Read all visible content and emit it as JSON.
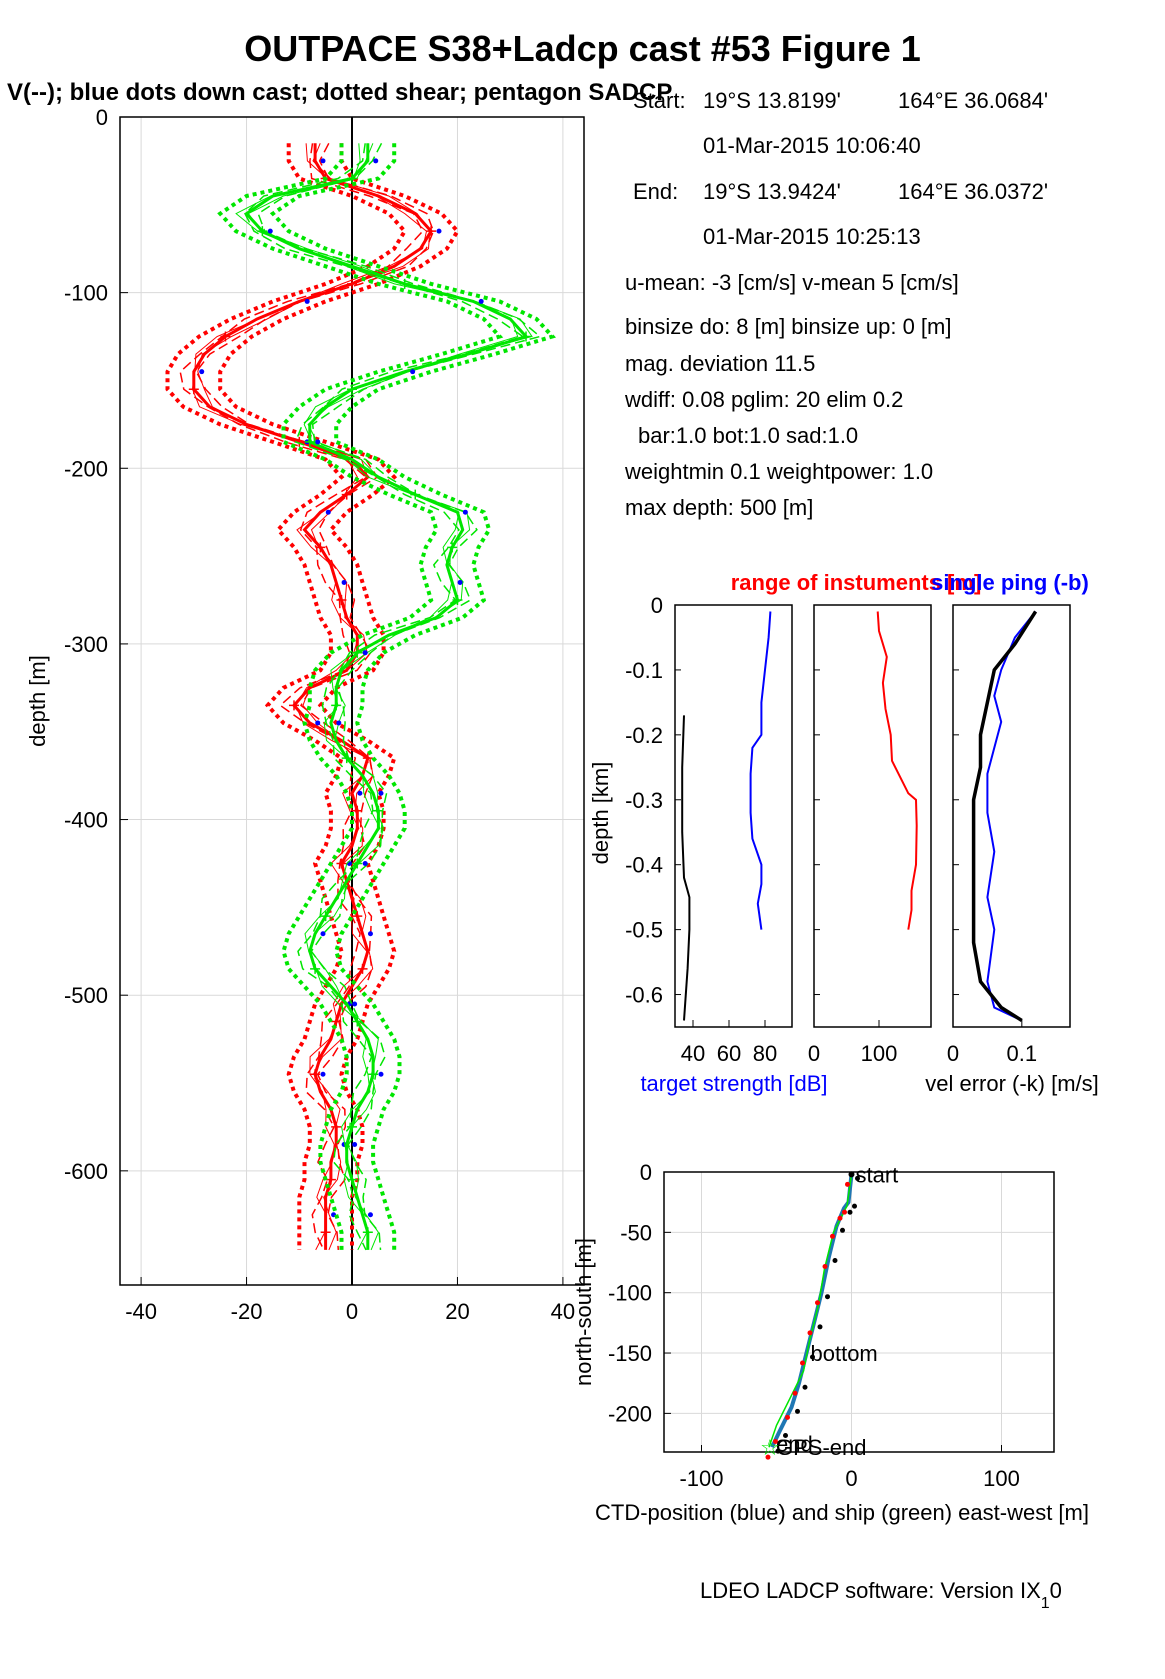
{
  "figure": {
    "title": "OUTPACE S38+Ladcp cast #53  Figure 1",
    "subtitle": "V(--); blue dots down cast; dotted shear; pentagon SADCP",
    "footer_main": "LDEO LADCP software: Version IX",
    "footer_sub": "1",
    "footer_tail": "0"
  },
  "info": {
    "start_label": "Start:",
    "start_lat": "19°S 13.8199'",
    "start_lon": "164°E 36.0684'",
    "start_time": "01-Mar-2015 10:06:40",
    "end_label": "End:",
    "end_lat": "19°S 13.9424'",
    "end_lon": "164°E 36.0372'",
    "end_time": "01-Mar-2015 10:25:13",
    "line_umean": "u-mean:  -3 [cm/s]    v-mean   5 [cm/s]",
    "line_binsize": "binsize do: 8 [m]  binsize up:  0 [m]",
    "line_magdev": "mag. deviation 11.5",
    "line_wdiff": "wdiff: 0.08  pglim: 20  elim 0.2",
    "line_bar": "bar:1.0 bot:1.0 sad:1.0",
    "line_weight": "weightmin 0.1  weightpower: 1.0",
    "line_maxdepth": "max depth: 500 [m]"
  },
  "colors": {
    "u": "#ff0000",
    "v": "#00e600",
    "dots": "#0000ff",
    "target": "#0000ff",
    "ctd": "#1f77b4",
    "ship": "#00e600",
    "black": "#000000"
  },
  "chart_data": [
    {
      "type": "line",
      "ylabel": "depth [m]",
      "xlabel": "",
      "xlim": [
        -44,
        44
      ],
      "ylim": [
        -665,
        0
      ],
      "xticks": [
        -40,
        -20,
        0,
        20,
        40
      ],
      "yticks": [
        0,
        -100,
        -200,
        -300,
        -400,
        -500,
        -600
      ],
      "grid": true,
      "depth": [
        -15,
        -25,
        -35,
        -45,
        -55,
        -65,
        -75,
        -85,
        -95,
        -105,
        -115,
        -125,
        -135,
        -145,
        -155,
        -165,
        -175,
        -185,
        -195,
        -205,
        -215,
        -225,
        -235,
        -245,
        -255,
        -265,
        -275,
        -285,
        -295,
        -305,
        -315,
        -325,
        -335,
        -345,
        -355,
        -365,
        -375,
        -385,
        -395,
        -405,
        -415,
        -425,
        -435,
        -445,
        -455,
        -465,
        -475,
        -485,
        -495,
        -505,
        -515,
        -525,
        -535,
        -545,
        -555,
        -565,
        -575,
        -585,
        -595,
        -605,
        -615,
        -625,
        -635,
        -645
      ],
      "series": [
        {
          "name": "u",
          "color": "#ff0000",
          "values": [
            -7,
            -7,
            -5,
            5,
            12,
            15,
            13,
            8,
            0,
            -10,
            -18,
            -24,
            -28,
            -30,
            -30,
            -27,
            -20,
            -10,
            0,
            3,
            -1,
            -6,
            -9,
            -6,
            -4,
            -3,
            -2,
            -1,
            1,
            1,
            -1,
            -8,
            -11,
            -8,
            -2,
            3,
            2,
            0,
            1,
            1,
            0,
            -2,
            -1,
            0,
            1,
            2,
            3,
            2,
            0,
            -2,
            -3,
            -4,
            -6,
            -7,
            -6,
            -4,
            -3,
            -3,
            -4,
            -4,
            -5,
            -5,
            -5,
            -5
          ]
        },
        {
          "name": "v",
          "color": "#00e600",
          "values": [
            3,
            3,
            0,
            -15,
            -20,
            -17,
            -10,
            0,
            10,
            23,
            30,
            33,
            22,
            10,
            0,
            -5,
            -8,
            -8,
            0,
            5,
            12,
            20,
            21,
            19,
            18,
            19,
            20,
            16,
            7,
            1,
            -2,
            -3,
            -3,
            -4,
            -3,
            -1,
            2,
            4,
            5,
            5,
            3,
            1,
            -1,
            -3,
            -5,
            -7,
            -8,
            -7,
            -4,
            -1,
            1,
            3,
            4,
            4,
            3,
            1,
            0,
            -1,
            -1,
            0,
            1,
            2,
            3,
            3
          ]
        }
      ]
    },
    {
      "type": "line",
      "title": "",
      "ylabel": "depth [km]",
      "xlabel": "target strength [dB]",
      "xlim": [
        30,
        95
      ],
      "xticks": [
        40,
        60,
        80
      ],
      "ylim": [
        -0.65,
        0
      ],
      "yticks": [
        0,
        -0.1,
        -0.2,
        -0.3,
        -0.4,
        -0.5,
        -0.6
      ],
      "series": [
        {
          "name": "target strength",
          "color": "#0000ff",
          "points": [
            [
              83,
              -0.01
            ],
            [
              82,
              -0.05
            ],
            [
              80,
              -0.1
            ],
            [
              78,
              -0.15
            ],
            [
              78,
              -0.2
            ],
            [
              73,
              -0.22
            ],
            [
              72,
              -0.26
            ],
            [
              72,
              -0.32
            ],
            [
              73,
              -0.36
            ],
            [
              78,
              -0.4
            ],
            [
              78,
              -0.43
            ],
            [
              76,
              -0.46
            ],
            [
              78,
              -0.5
            ]
          ]
        },
        {
          "name": "range",
          "color": "#000000",
          "points": [
            [
              35,
              -0.17
            ],
            [
              34,
              -0.25
            ],
            [
              34,
              -0.35
            ],
            [
              35,
              -0.42
            ],
            [
              38,
              -0.45
            ],
            [
              38,
              -0.5
            ],
            [
              37,
              -0.56
            ],
            [
              36,
              -0.6
            ],
            [
              35,
              -0.64
            ]
          ]
        }
      ]
    },
    {
      "type": "line",
      "title": "range of instuments [m]",
      "xlim": [
        0,
        180
      ],
      "xticks": [
        0,
        100
      ],
      "ylim": [
        -0.65,
        0
      ],
      "series": [
        {
          "name": "range",
          "color": "#ff0000",
          "points": [
            [
              98,
              -0.01
            ],
            [
              100,
              -0.04
            ],
            [
              112,
              -0.08
            ],
            [
              106,
              -0.12
            ],
            [
              110,
              -0.16
            ],
            [
              118,
              -0.2
            ],
            [
              120,
              -0.24
            ],
            [
              145,
              -0.29
            ],
            [
              157,
              -0.3
            ],
            [
              158,
              -0.34
            ],
            [
              157,
              -0.4
            ],
            [
              150,
              -0.44
            ],
            [
              150,
              -0.47
            ],
            [
              145,
              -0.5
            ]
          ]
        }
      ]
    },
    {
      "type": "line",
      "title": "single ping (-b)",
      "xlabel": "vel error (-k) [m/s]",
      "xlim": [
        0,
        0.17
      ],
      "xticks": [
        0,
        0.1
      ],
      "ylim": [
        -0.65,
        0
      ],
      "series": [
        {
          "name": "single ping",
          "color": "#0000ff",
          "points": [
            [
              0.12,
              -0.01
            ],
            [
              0.09,
              -0.05
            ],
            [
              0.07,
              -0.1
            ],
            [
              0.06,
              -0.14
            ],
            [
              0.07,
              -0.18
            ],
            [
              0.06,
              -0.22
            ],
            [
              0.05,
              -0.26
            ],
            [
              0.05,
              -0.32
            ],
            [
              0.06,
              -0.38
            ],
            [
              0.05,
              -0.45
            ],
            [
              0.06,
              -0.5
            ],
            [
              0.05,
              -0.58
            ],
            [
              0.06,
              -0.62
            ],
            [
              0.1,
              -0.64
            ]
          ]
        },
        {
          "name": "vel error",
          "color": "#000000",
          "points": [
            [
              0.12,
              -0.01
            ],
            [
              0.09,
              -0.06
            ],
            [
              0.06,
              -0.1
            ],
            [
              0.05,
              -0.15
            ],
            [
              0.04,
              -0.2
            ],
            [
              0.04,
              -0.25
            ],
            [
              0.03,
              -0.3
            ],
            [
              0.03,
              -0.38
            ],
            [
              0.03,
              -0.45
            ],
            [
              0.03,
              -0.52
            ],
            [
              0.04,
              -0.58
            ],
            [
              0.07,
              -0.62
            ],
            [
              0.1,
              -0.64
            ]
          ]
        }
      ]
    },
    {
      "type": "line",
      "xlabel": "CTD-position (blue) and ship (green) east-west [m]",
      "ylabel": "north-south [m]",
      "xlim": [
        -125,
        135
      ],
      "xticks": [
        -100,
        0,
        100
      ],
      "ylim": [
        -232,
        0
      ],
      "yticks": [
        0,
        -50,
        -100,
        -150,
        -200
      ],
      "grid": true,
      "annotations": [
        "start",
        "bottom",
        "GPS-end",
        "end"
      ],
      "series": [
        {
          "name": "CTD",
          "color": "#1f77b4",
          "points": [
            [
              0,
              -2
            ],
            [
              -2,
              -25
            ],
            [
              -5,
              -30
            ],
            [
              -10,
              -45
            ],
            [
              -15,
              -70
            ],
            [
              -20,
              -100
            ],
            [
              -25,
              -125
            ],
            [
              -30,
              -150
            ],
            [
              -35,
              -175
            ],
            [
              -40,
              -195
            ],
            [
              -48,
              -215
            ],
            [
              -53,
              -228
            ]
          ]
        },
        {
          "name": "ship",
          "color": "#00e600",
          "points": [
            [
              0,
              -2
            ],
            [
              -3,
              -28
            ],
            [
              -12,
              -50
            ],
            [
              -18,
              -80
            ],
            [
              -22,
              -110
            ],
            [
              -28,
              -140
            ],
            [
              -32,
              -165
            ],
            [
              -40,
              -185
            ],
            [
              -50,
              -210
            ],
            [
              -55,
              -228
            ]
          ]
        }
      ]
    }
  ]
}
